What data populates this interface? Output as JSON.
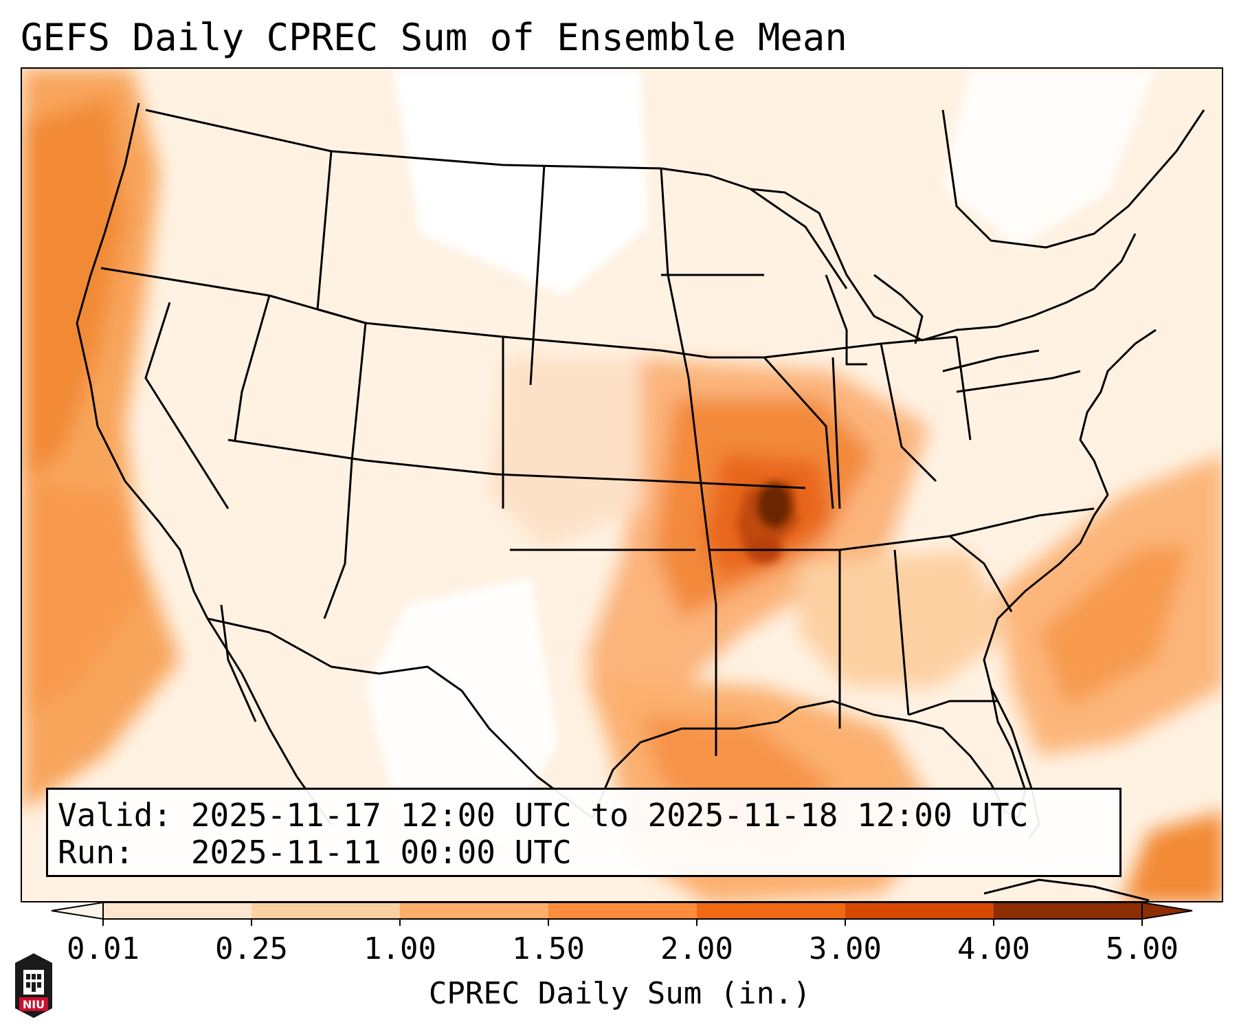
{
  "title": "GEFS Daily CPREC Sum of Ensemble Mean",
  "valid_line": "Valid: 2025-11-17 12:00 UTC to 2025-11-18 12:00 UTC",
  "run_line": "Run:   2025-11-11 00:00 UTC",
  "colorbar": {
    "label": "CPREC Daily Sum (in.)",
    "ticks": [
      "0.01",
      "0.25",
      "1.00",
      "1.50",
      "2.00",
      "3.00",
      "4.00",
      "5.00"
    ],
    "colors": [
      "#fff5eb",
      "#fee6ce",
      "#fdd0a2",
      "#fdae6b",
      "#fd8d3c",
      "#f16913",
      "#d94801",
      "#8c2d04"
    ],
    "extend": "both"
  },
  "logo_text": "NIU",
  "colors": {
    "light": "#fff0e0",
    "low": "#fddcbd",
    "mid": "#fcb67a",
    "high": "#f48a3a",
    "heavy": "#e8661c",
    "peak": "#b94008",
    "core": "#6b2505"
  }
}
